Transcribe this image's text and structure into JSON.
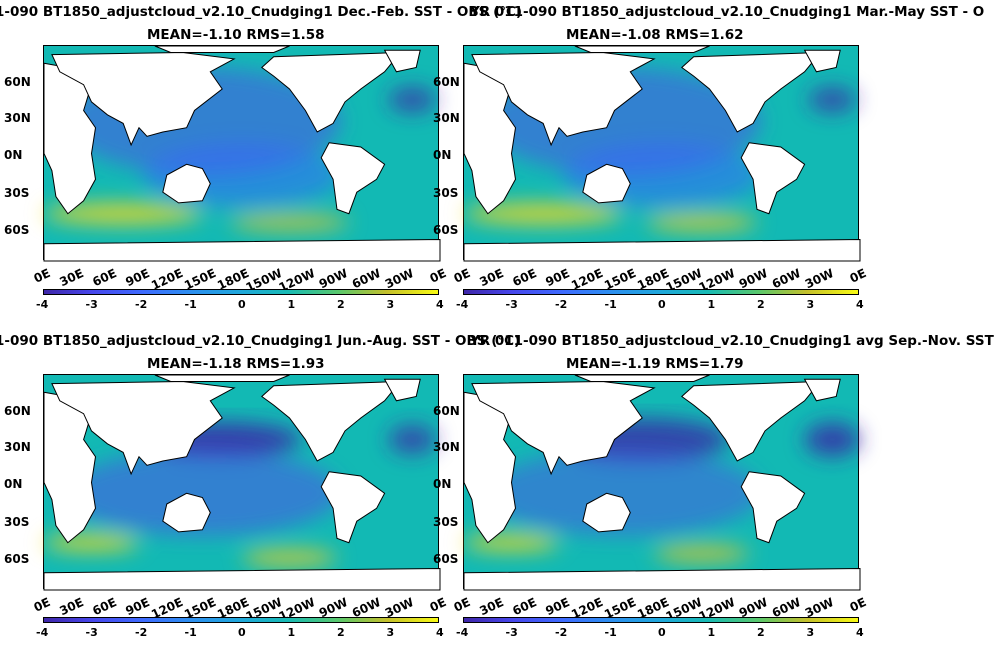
{
  "panels": [
    {
      "title": "1-090 BT1850_adjustcloud_v2.10_Cnudging1  Dec.-Feb. SST - OBS (°C)",
      "stats": "MEAN=-1.10   RMS=1.58"
    },
    {
      "title": "YR 011-090 BT1850_adjustcloud_v2.10_Cnudging1 Mar.-May SST - O",
      "stats": "MEAN=-1.08   RMS=1.62"
    },
    {
      "title": "1-090 BT1850_adjustcloud_v2.10_Cnudging1 Jun.-Aug. SST - OBS (°C)",
      "stats": "MEAN=-1.18   RMS=1.93"
    },
    {
      "title": "YR 011-090 BT1850_adjustcloud_v2.10_Cnudging1 avg Sep.-Nov. SST",
      "stats": "MEAN=-1.19   RMS=1.79"
    }
  ],
  "lat_labels": [
    "60N",
    "30N",
    "0N",
    "30S",
    "60S"
  ],
  "lon_labels": [
    "0E",
    "30E",
    "60E",
    "90E",
    "120E",
    "150E",
    "180E",
    "150W",
    "120W",
    "90W",
    "60W",
    "30W",
    "0E"
  ],
  "colorbar_ticks": [
    "-4",
    "-3",
    "-2",
    "-1",
    "0",
    "1",
    "2",
    "3",
    "4"
  ],
  "colors": {
    "ocean_base": "#12b9b4",
    "land": "#ffffff",
    "cold": "#3e26a8",
    "warm": "#f9fb14"
  }
}
